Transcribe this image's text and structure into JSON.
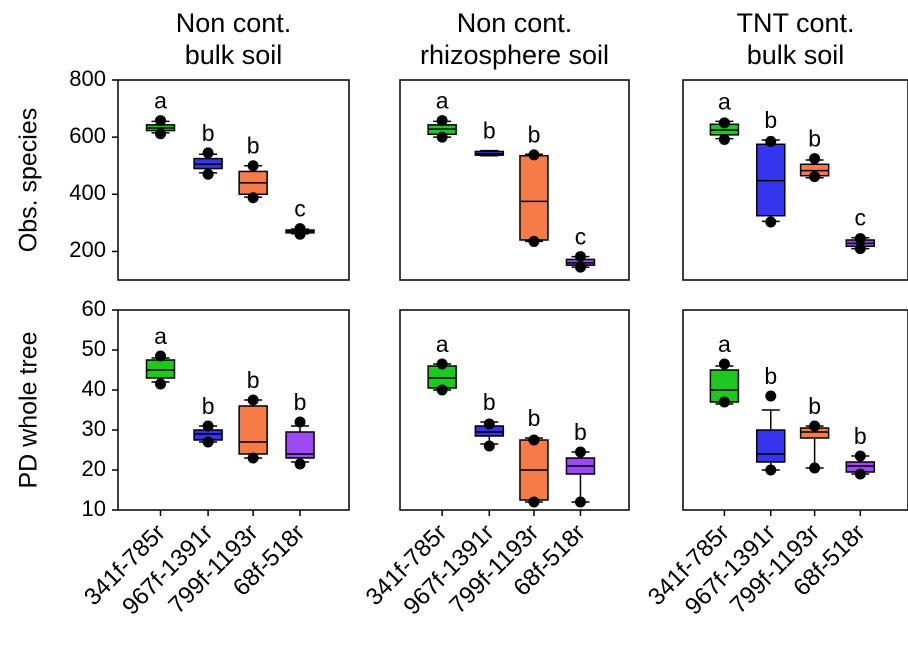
{
  "chart_data": {
    "type": "box",
    "columns": [
      {
        "title_line1": "Non cont.",
        "title_line2": "bulk soil"
      },
      {
        "title_line1": "Non cont.",
        "title_line2": "rhizosphere soil"
      },
      {
        "title_line1": "TNT cont.",
        "title_line2": "bulk soil"
      }
    ],
    "categories": [
      "341f-785r",
      "967f-1391r",
      "799f-1193r",
      "68f-518r"
    ],
    "category_colors": [
      "#1ec81e",
      "#3535f0",
      "#f57c48",
      "#9b4af2"
    ],
    "rows": [
      {
        "ylabel": "Obs. species",
        "ylim": [
          100,
          800
        ],
        "yticks": [
          200,
          400,
          600,
          800
        ],
        "panels": [
          {
            "boxes": [
              {
                "q1": 623,
                "median": 632,
                "q3": 643,
                "whisker_low": 615,
                "whisker_high": 655,
                "outliers": [
                  612,
                  658
                ],
                "letter": "a"
              },
              {
                "q1": 490,
                "median": 505,
                "q3": 525,
                "whisker_low": 475,
                "whisker_high": 540,
                "outliers": [
                  470,
                  545
                ],
                "letter": "b"
              },
              {
                "q1": 400,
                "median": 440,
                "q3": 480,
                "whisker_low": 390,
                "whisker_high": 500,
                "outliers": [
                  388,
                  500
                ],
                "letter": "b"
              },
              {
                "q1": 265,
                "median": 270,
                "q3": 275,
                "whisker_low": 262,
                "whisker_high": 278,
                "outliers": [
                  260,
                  280
                ],
                "letter": "c"
              }
            ]
          },
          {
            "boxes": [
              {
                "q1": 610,
                "median": 628,
                "q3": 643,
                "whisker_low": 600,
                "whisker_high": 655,
                "outliers": [
                  600,
                  658
                ],
                "letter": "a"
              },
              {
                "q1": 537,
                "median": 542,
                "q3": 550,
                "whisker_low": 535,
                "whisker_high": 553,
                "outliers": [],
                "letter": "b"
              },
              {
                "q1": 240,
                "median": 375,
                "q3": 535,
                "whisker_low": 235,
                "whisker_high": 540,
                "outliers": [
                  235,
                  538
                ],
                "letter": "b"
              },
              {
                "q1": 152,
                "median": 160,
                "q3": 172,
                "whisker_low": 145,
                "whisker_high": 182,
                "outliers": [
                  145,
                  182
                ],
                "letter": "c"
              }
            ]
          },
          {
            "boxes": [
              {
                "q1": 608,
                "median": 625,
                "q3": 645,
                "whisker_low": 595,
                "whisker_high": 655,
                "outliers": [
                  592,
                  650
                ],
                "letter": "a"
              },
              {
                "q1": 325,
                "median": 448,
                "q3": 575,
                "whisker_low": 305,
                "whisker_high": 590,
                "outliers": [
                  303,
                  585
                ],
                "letter": "b"
              },
              {
                "q1": 465,
                "median": 483,
                "q3": 505,
                "whisker_low": 458,
                "whisker_high": 520,
                "outliers": [
                  462,
                  525
                ],
                "letter": "b"
              },
              {
                "q1": 218,
                "median": 228,
                "q3": 240,
                "whisker_low": 210,
                "whisker_high": 248,
                "outliers": [
                  210,
                  245
                ],
                "letter": "c"
              }
            ]
          }
        ]
      },
      {
        "ylabel": "PD whole tree",
        "ylim": [
          10,
          60
        ],
        "yticks": [
          10,
          20,
          30,
          40,
          50,
          60
        ],
        "panels": [
          {
            "boxes": [
              {
                "q1": 43,
                "median": 45,
                "q3": 47.5,
                "whisker_low": 42,
                "whisker_high": 48,
                "outliers": [
                  41.5,
                  48.5
                ],
                "letter": "a"
              },
              {
                "q1": 27.5,
                "median": 29,
                "q3": 30,
                "whisker_low": 27,
                "whisker_high": 31,
                "outliers": [
                  27,
                  31
                ],
                "letter": "b"
              },
              {
                "q1": 24,
                "median": 27,
                "q3": 36,
                "whisker_low": 23,
                "whisker_high": 37.5,
                "outliers": [
                  23,
                  37.5
                ],
                "letter": "b"
              },
              {
                "q1": 23,
                "median": 24,
                "q3": 29.5,
                "whisker_low": 22,
                "whisker_high": 31,
                "outliers": [
                  21.5,
                  32
                ],
                "letter": "b"
              }
            ]
          },
          {
            "boxes": [
              {
                "q1": 40.5,
                "median": 43,
                "q3": 46,
                "whisker_low": 40,
                "whisker_high": 46.5,
                "outliers": [
                  40,
                  46.5
                ],
                "letter": "a"
              },
              {
                "q1": 28.5,
                "median": 29.5,
                "q3": 31,
                "whisker_low": 26.5,
                "whisker_high": 32,
                "outliers": [
                  26,
                  31.5
                ],
                "letter": "b"
              },
              {
                "q1": 12.5,
                "median": 20,
                "q3": 27.5,
                "whisker_low": 12,
                "whisker_high": 28,
                "outliers": [
                  12,
                  27.5
                ],
                "letter": "b"
              },
              {
                "q1": 19,
                "median": 21,
                "q3": 23,
                "whisker_low": 12,
                "whisker_high": 24.5,
                "outliers": [
                  12,
                  24.5
                ],
                "letter": "b"
              }
            ]
          },
          {
            "boxes": [
              {
                "q1": 37,
                "median": 40,
                "q3": 45,
                "whisker_low": 36.5,
                "whisker_high": 46,
                "outliers": [
                  37,
                  46.5
                ],
                "letter": "a"
              },
              {
                "q1": 22,
                "median": 24,
                "q3": 30,
                "whisker_low": 20,
                "whisker_high": 35,
                "outliers": [
                  20,
                  38.5
                ],
                "letter": "b"
              },
              {
                "q1": 28,
                "median": 29.5,
                "q3": 30.5,
                "whisker_low": 20.5,
                "whisker_high": 31,
                "outliers": [
                  20.5,
                  31
                ],
                "letter": "b"
              },
              {
                "q1": 19.5,
                "median": 21,
                "q3": 22,
                "whisker_low": 19,
                "whisker_high": 23.5,
                "outliers": [
                  19,
                  23.5
                ],
                "letter": "b"
              }
            ]
          }
        ]
      }
    ]
  }
}
